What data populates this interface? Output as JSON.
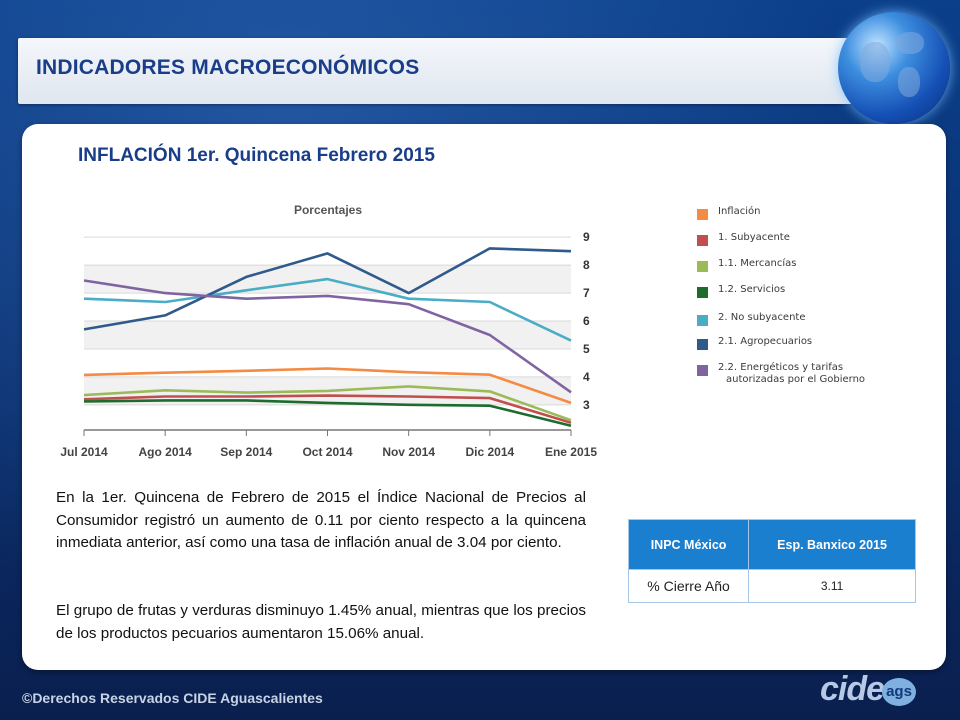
{
  "header": {
    "title": "INDICADORES MACROECONÓMICOS"
  },
  "main": {
    "title": "INFLACIÓN 1er. Quincena Febrero 2015"
  },
  "chart_data": {
    "type": "line",
    "title": "Porcentajes",
    "categories": [
      "Jul 2014",
      "Ago 2014",
      "Sep 2014",
      "Oct 2014",
      "Nov 2014",
      "Dic 2014",
      "Ene 2015"
    ],
    "ylim": [
      2.1,
      9.4
    ],
    "yticks": [
      3,
      4,
      5,
      6,
      7,
      8,
      9
    ],
    "y_axis_side": "right",
    "grid": true,
    "legend_placement": "right",
    "series": [
      {
        "name": "Inflación",
        "color": "#f58a42",
        "values": [
          4.07,
          4.15,
          4.22,
          4.3,
          4.17,
          4.08,
          3.07
        ]
      },
      {
        "name": "1. Subyacente",
        "color": "#c0504d",
        "values": [
          3.2,
          3.3,
          3.3,
          3.33,
          3.3,
          3.24,
          2.36
        ]
      },
      {
        "name": "1.1. Mercancías",
        "color": "#9bbb59",
        "values": [
          3.35,
          3.52,
          3.44,
          3.5,
          3.66,
          3.48,
          2.45
        ]
      },
      {
        "name": "1.2. Servicios",
        "color": "#1f6b2e",
        "values": [
          3.12,
          3.16,
          3.16,
          3.07,
          3.0,
          2.97,
          2.25
        ]
      },
      {
        "name": "2. No subyacente",
        "color": "#4bacc6",
        "values": [
          6.8,
          6.68,
          7.1,
          7.5,
          6.8,
          6.68,
          5.3
        ]
      },
      {
        "name": "2.1. Agropecuarios",
        "color": "#2e5a8c",
        "values": [
          5.7,
          6.2,
          7.58,
          8.42,
          7.0,
          8.6,
          8.5
        ]
      },
      {
        "name": "2.2. Energéticos y tarifas autorizadas por el Gobierno",
        "color": "#8064a2",
        "values": [
          7.45,
          7.0,
          6.8,
          6.9,
          6.6,
          5.5,
          3.45
        ]
      }
    ]
  },
  "legend": {
    "items": [
      {
        "label": "Inflación",
        "color": "#f58a42"
      },
      {
        "label": "1. Subyacente",
        "color": "#c0504d"
      },
      {
        "label": "1.1. Mercancías",
        "color": "#9bbb59"
      },
      {
        "label": "1.2. Servicios",
        "color": "#1f6b2e"
      },
      {
        "label": "2. No subyacente",
        "color": "#4bacc6"
      },
      {
        "label": "2.1. Agropecuarios",
        "color": "#2e5a8c"
      },
      {
        "label": "2.2. Energéticos y tarifas",
        "label2": "autorizadas por el Gobierno",
        "color": "#8064a2"
      }
    ]
  },
  "text": {
    "para1": "En la 1er. Quincena de Febrero de 2015 el Índice Nacional de Precios al Consumidor registró un aumento de 0.11 por ciento respecto a la quincena inmediata anterior, así como una tasa de inflación anual de 3.04 por ciento.",
    "para2": "El grupo de frutas y verduras disminuyo 1.45% anual, mientras que los precios de los productos pecuarios aumentaron 15.06% anual."
  },
  "table": {
    "col1_header": "INPC México",
    "col2_header": "Esp. Banxico 2015",
    "row_label": "% Cierre Año",
    "row_value": "3.11"
  },
  "footer": {
    "text": "©Derechos Reservados CIDE Aguascalientes"
  },
  "logo": {
    "mark": "cide",
    "badge": "ags"
  },
  "colors": {
    "accent": "#1a3d8a",
    "table_header": "#1b7fd0",
    "background": "#0b3f8a"
  }
}
